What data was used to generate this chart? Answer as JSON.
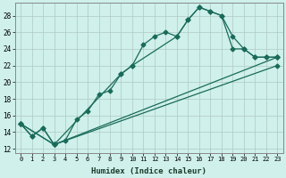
{
  "xlabel": "Humidex (Indice chaleur)",
  "xlim": [
    -0.5,
    23.5
  ],
  "ylim": [
    11.5,
    29.5
  ],
  "xticks": [
    0,
    1,
    2,
    3,
    4,
    5,
    6,
    7,
    8,
    9,
    10,
    11,
    12,
    13,
    14,
    15,
    16,
    17,
    18,
    19,
    20,
    21,
    22,
    23
  ],
  "yticks": [
    12,
    14,
    16,
    18,
    20,
    22,
    24,
    26,
    28
  ],
  "bg_color": "#cff0eb",
  "grid_color": "#b0c8c4",
  "line_color": "#1a6b5a",
  "line1_x": [
    0,
    1,
    2,
    3,
    4,
    5,
    6,
    7,
    8,
    9,
    10,
    11,
    12,
    13,
    14,
    15,
    16,
    17,
    18,
    19,
    20,
    21,
    22,
    23
  ],
  "line1_y": [
    15.0,
    13.5,
    14.5,
    12.5,
    13.0,
    15.5,
    16.5,
    18.5,
    19.0,
    21.0,
    22.0,
    24.5,
    25.5,
    26.0,
    25.5,
    27.5,
    29.0,
    28.5,
    28.0,
    25.5,
    24.0,
    23.0,
    23.0,
    23.0
  ],
  "line2_x": [
    0,
    1,
    2,
    3,
    9,
    10,
    14,
    15,
    16,
    17,
    18,
    19,
    20,
    21,
    22,
    23
  ],
  "line2_y": [
    15.0,
    13.5,
    14.5,
    12.5,
    21.0,
    22.0,
    25.5,
    27.5,
    29.0,
    28.5,
    28.0,
    24.0,
    24.0,
    23.0,
    23.0,
    23.0
  ],
  "line3_x": [
    0,
    3,
    23
  ],
  "line3_y": [
    15.0,
    12.5,
    23.0
  ],
  "line4_x": [
    0,
    3,
    23
  ],
  "line4_y": [
    15.0,
    12.5,
    22.0
  ],
  "marker_style": "D",
  "marker_size": 2.5,
  "line_width": 0.9
}
